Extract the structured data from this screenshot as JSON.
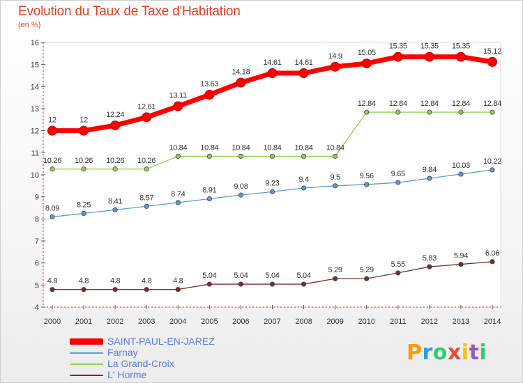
{
  "title": "Evolution du Taux de Taxe d'Habitation",
  "subtitle": "(en %)",
  "logo": {
    "text": "Proxiti",
    "letters": [
      "P",
      "r",
      "o",
      "x",
      "i",
      "t",
      "i"
    ],
    "colors": [
      "#f39c12",
      "#3498db",
      "#2ecc71",
      "#e74c3c",
      "#f1c40f",
      "#9b59b6",
      "#2ecc71"
    ]
  },
  "chart_data": {
    "type": "line",
    "title": "Evolution du Taux de Taxe d'Habitation",
    "ylabel": "(en %)",
    "xlabel": "",
    "x": [
      "2000",
      "2001",
      "2002",
      "2003",
      "2004",
      "2005",
      "2006",
      "2007",
      "2008",
      "2009",
      "2010",
      "2011",
      "2012",
      "2013",
      "2014"
    ],
    "ylim": [
      4,
      16
    ],
    "yticks": [
      4,
      5,
      6,
      7,
      8,
      9,
      10,
      11,
      12,
      13,
      14,
      15,
      16
    ],
    "grid": false,
    "legend": "bottom-left",
    "series": [
      {
        "name": "SAINT-PAUL-EN-JAREZ",
        "color": "#ff0000",
        "values": [
          12,
          12,
          12.24,
          12.61,
          13.11,
          13.63,
          14.18,
          14.61,
          14.61,
          14.9,
          15.05,
          15.35,
          15.35,
          15.35,
          15.12
        ],
        "labels": [
          "12",
          "12",
          "12.24",
          "12.61",
          "13.11",
          "13.63",
          "14.18",
          "14.61",
          "14.61",
          "14.9",
          "15.05",
          "15.35",
          "15.35",
          "15.35",
          "15.12"
        ]
      },
      {
        "name": "Farnay",
        "color": "#5b9bd5",
        "values": [
          8.09,
          8.25,
          8.41,
          8.57,
          8.74,
          8.91,
          9.08,
          9.23,
          9.4,
          9.5,
          9.56,
          9.65,
          9.84,
          10.03,
          10.22
        ],
        "labels": [
          "8.09",
          "8.25",
          "8.41",
          "8.57",
          "8.74",
          "8.91",
          "9.08",
          "9.23",
          "9.4",
          "9.5",
          "9.56",
          "9.65",
          "9.84",
          "10.03",
          "10.22"
        ]
      },
      {
        "name": "La Grand-Croix",
        "color": "#92d050",
        "values": [
          10.26,
          10.26,
          10.26,
          10.26,
          10.84,
          10.84,
          10.84,
          10.84,
          10.84,
          10.84,
          12.84,
          12.84,
          12.84,
          12.84,
          12.84
        ],
        "labels": [
          "10.26",
          "10.26",
          "10.26",
          "10.26",
          "10.84",
          "10.84",
          "10.84",
          "10.84",
          "10.84",
          "10.84",
          "12.84",
          "12.84",
          "12.84",
          "12.84",
          "12.84"
        ]
      },
      {
        "name": "L' Horme",
        "color": "#7b2c2c",
        "values": [
          4.8,
          4.8,
          4.8,
          4.8,
          4.8,
          5.04,
          5.04,
          5.04,
          5.04,
          5.29,
          5.29,
          5.55,
          5.83,
          5.94,
          6.06
        ],
        "labels": [
          "4.8",
          "4.8",
          "4.8",
          "4.8",
          "4.8",
          "5.04",
          "5.04",
          "5.04",
          "5.04",
          "5.29",
          "5.29",
          "5.55",
          "5.83",
          "5.94",
          "6.06"
        ]
      }
    ]
  }
}
